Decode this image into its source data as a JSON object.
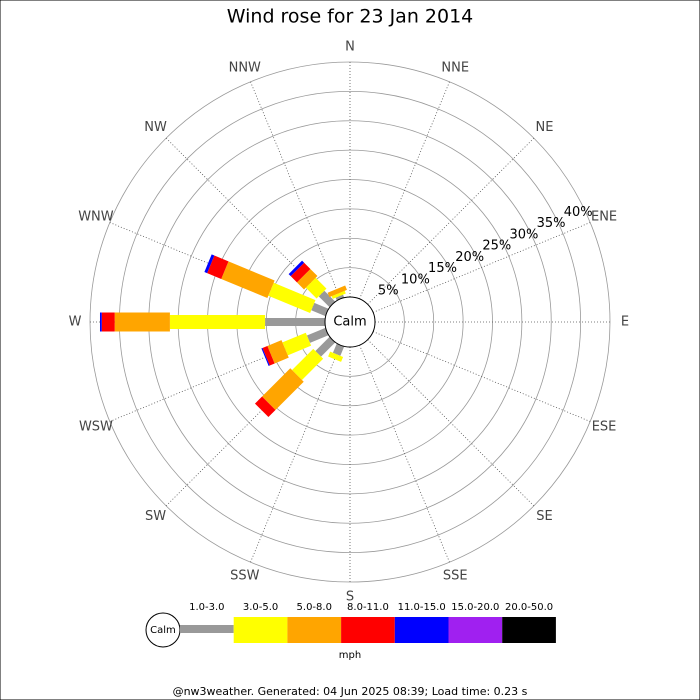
{
  "chart_data": {
    "type": "windrose",
    "title": "Wind rose for 23 Jan 2014",
    "categories": [
      "N",
      "NNE",
      "NE",
      "ENE",
      "E",
      "ESE",
      "SE",
      "SSE",
      "S",
      "SSW",
      "SW",
      "WSW",
      "W",
      "WNW",
      "NW",
      "NNW"
    ],
    "center_label": "Calm",
    "rlim": [
      0,
      40
    ],
    "rticks": [
      {
        "value": 5,
        "label": "5%"
      },
      {
        "value": 10,
        "label": "10%"
      },
      {
        "value": 15,
        "label": "15%"
      },
      {
        "value": 20,
        "label": "20%"
      },
      {
        "value": 25,
        "label": "25%"
      },
      {
        "value": 30,
        "label": "30%"
      },
      {
        "value": 35,
        "label": "35%"
      },
      {
        "value": 40,
        "label": "40%"
      }
    ],
    "series": [
      {
        "name": "1.0-3.0",
        "color": "#999999",
        "values": [
          0,
          0,
          0,
          0,
          0,
          0,
          0,
          0,
          0,
          1.7,
          3.4,
          3.4,
          10.2,
          2.6,
          2.6,
          0.5
        ]
      },
      {
        "name": "3.0-5.0",
        "color": "#ffff00",
        "values": [
          0,
          0,
          0,
          0,
          0,
          0,
          0,
          0,
          0,
          0.9,
          5.1,
          4.3,
          16.2,
          7.7,
          2.6,
          0.5
        ]
      },
      {
        "name": "5.0-8.0",
        "color": "#ffa500",
        "values": [
          0,
          0,
          0,
          0,
          0,
          0,
          0,
          0,
          0,
          0,
          6.8,
          2.6,
          9.4,
          8.5,
          1.7,
          0.8
        ]
      },
      {
        "name": "8.0-11.0",
        "color": "#ff0000",
        "values": [
          0,
          0,
          0,
          0,
          0,
          0,
          0,
          0,
          0,
          0,
          1.7,
          0.9,
          2.2,
          2.6,
          1.5,
          0
        ]
      },
      {
        "name": "11.0-15.0",
        "color": "#0000ff",
        "values": [
          0,
          0,
          0,
          0,
          0,
          0,
          0,
          0,
          0,
          0,
          0,
          0.2,
          0.3,
          0.5,
          0.5,
          0
        ]
      },
      {
        "name": "15.0-20.0",
        "color": "#a020f0",
        "values": [
          0,
          0,
          0,
          0,
          0,
          0,
          0,
          0,
          0,
          0,
          0,
          0,
          0,
          0,
          0,
          0
        ]
      },
      {
        "name": "20.0-50.0",
        "color": "#000000",
        "values": [
          0,
          0,
          0,
          0,
          0,
          0,
          0,
          0,
          0,
          0,
          0,
          0,
          0,
          0,
          0,
          0
        ]
      }
    ],
    "legend_label": "Calm",
    "unit_label": "mph",
    "footer": "@nw3weather. Generated: 04 Jun 2025 08:39; Load time: 0.23 s"
  }
}
